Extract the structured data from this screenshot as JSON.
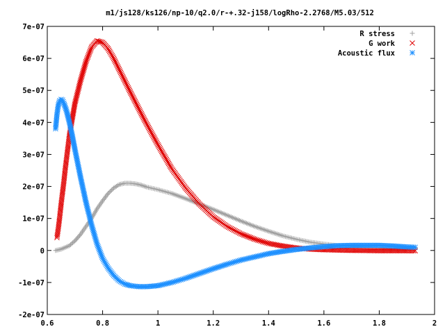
{
  "chart_data": {
    "type": "scatter",
    "title": "m1/js128/ks126/np-10/q2.0/r-+.32-j158/logRho-2.2768/M5.03/512",
    "xlabel": "",
    "ylabel": "",
    "xlim": [
      0.6,
      2.0
    ],
    "ylim": [
      -2e-07,
      7e-07
    ],
    "grid": false,
    "legend_position": "top-right",
    "x_ticks": [
      {
        "value": 0.6,
        "label": "0.6"
      },
      {
        "value": 0.8,
        "label": "0.8"
      },
      {
        "value": 1.0,
        "label": "1"
      },
      {
        "value": 1.2,
        "label": "1.2"
      },
      {
        "value": 1.4,
        "label": "1.4"
      },
      {
        "value": 1.6,
        "label": "1.6"
      },
      {
        "value": 1.8,
        "label": "1.8"
      },
      {
        "value": 2.0,
        "label": "2"
      }
    ],
    "y_ticks": [
      {
        "value": -2e-07,
        "label": "-2e-07"
      },
      {
        "value": -1e-07,
        "label": "-1e-07"
      },
      {
        "value": 0,
        "label": "0"
      },
      {
        "value": 1e-07,
        "label": "1e-07"
      },
      {
        "value": 2e-07,
        "label": "2e-07"
      },
      {
        "value": 3e-07,
        "label": "3e-07"
      },
      {
        "value": 4e-07,
        "label": "4e-07"
      },
      {
        "value": 5e-07,
        "label": "5e-07"
      },
      {
        "value": 6e-07,
        "label": "6e-07"
      },
      {
        "value": 7e-07,
        "label": "7e-07"
      }
    ],
    "series": [
      {
        "name": "R stress",
        "marker": "plus",
        "color": "#a0a0a0",
        "points": [
          [
            0.63,
            0.0
          ],
          [
            0.65,
            4e-09
          ],
          [
            0.68,
            1.5e-08
          ],
          [
            0.7,
            3e-08
          ],
          [
            0.72,
            5e-08
          ],
          [
            0.74,
            7.5e-08
          ],
          [
            0.76,
            1e-07
          ],
          [
            0.78,
            1.3e-07
          ],
          [
            0.8,
            1.55e-07
          ],
          [
            0.82,
            1.78e-07
          ],
          [
            0.84,
            1.95e-07
          ],
          [
            0.86,
            2.06e-07
          ],
          [
            0.88,
            2.1e-07
          ],
          [
            0.9,
            2.1e-07
          ],
          [
            0.92,
            2.08e-07
          ],
          [
            0.94,
            2.04e-07
          ],
          [
            0.96,
            1.98e-07
          ],
          [
            1.0,
            1.9e-07
          ],
          [
            1.05,
            1.78e-07
          ],
          [
            1.1,
            1.62e-07
          ],
          [
            1.15,
            1.45e-07
          ],
          [
            1.2,
            1.28e-07
          ],
          [
            1.25,
            1.1e-07
          ],
          [
            1.3,
            9.2e-08
          ],
          [
            1.35,
            7.5e-08
          ],
          [
            1.4,
            6e-08
          ],
          [
            1.45,
            4.6e-08
          ],
          [
            1.5,
            3.5e-08
          ],
          [
            1.55,
            2.6e-08
          ],
          [
            1.6,
            2e-08
          ],
          [
            1.65,
            1.5e-08
          ],
          [
            1.7,
            1.2e-08
          ],
          [
            1.75,
            1e-08
          ],
          [
            1.8,
            9e-09
          ],
          [
            1.85,
            8e-09
          ],
          [
            1.9,
            8e-09
          ],
          [
            1.93,
            8e-09
          ]
        ]
      },
      {
        "name": "G work",
        "marker": "cross",
        "color": "#e00000",
        "points": [
          [
            0.635,
            4e-08
          ],
          [
            0.64,
            7e-08
          ],
          [
            0.645,
            1.05e-07
          ],
          [
            0.65,
            1.45e-07
          ],
          [
            0.655,
            1.8e-07
          ],
          [
            0.66,
            2.15e-07
          ],
          [
            0.665,
            2.55e-07
          ],
          [
            0.67,
            2.9e-07
          ],
          [
            0.675,
            3.25e-07
          ],
          [
            0.68,
            3.6e-07
          ],
          [
            0.69,
            4.1e-07
          ],
          [
            0.7,
            4.6e-07
          ],
          [
            0.72,
            5.3e-07
          ],
          [
            0.74,
            5.9e-07
          ],
          [
            0.76,
            6.35e-07
          ],
          [
            0.78,
            6.55e-07
          ],
          [
            0.8,
            6.5e-07
          ],
          [
            0.82,
            6.3e-07
          ],
          [
            0.84,
            6e-07
          ],
          [
            0.86,
            5.65e-07
          ],
          [
            0.88,
            5.3e-07
          ],
          [
            0.9,
            4.95e-07
          ],
          [
            0.95,
            4.1e-07
          ],
          [
            1.0,
            3.3e-07
          ],
          [
            1.05,
            2.55e-07
          ],
          [
            1.1,
            1.95e-07
          ],
          [
            1.15,
            1.45e-07
          ],
          [
            1.2,
            1.05e-07
          ],
          [
            1.25,
            7.5e-08
          ],
          [
            1.3,
            5.2e-08
          ],
          [
            1.35,
            3.5e-08
          ],
          [
            1.4,
            2.2e-08
          ],
          [
            1.45,
            1.4e-08
          ],
          [
            1.5,
            8e-09
          ],
          [
            1.55,
            4e-09
          ],
          [
            1.6,
            2e-09
          ],
          [
            1.7,
            0.0
          ],
          [
            1.8,
            -1e-09
          ],
          [
            1.9,
            -1e-09
          ],
          [
            1.93,
            -1e-09
          ]
        ]
      },
      {
        "name": "Acoustic flux",
        "marker": "star",
        "color": "#1e90ff",
        "points": [
          [
            0.63,
            3.8e-07
          ],
          [
            0.635,
            4.25e-07
          ],
          [
            0.64,
            4.55e-07
          ],
          [
            0.645,
            4.68e-07
          ],
          [
            0.65,
            4.72e-07
          ],
          [
            0.655,
            4.7e-07
          ],
          [
            0.66,
            4.6e-07
          ],
          [
            0.67,
            4.35e-07
          ],
          [
            0.68,
            4e-07
          ],
          [
            0.69,
            3.6e-07
          ],
          [
            0.7,
            3.15e-07
          ],
          [
            0.72,
            2.3e-07
          ],
          [
            0.74,
            1.5e-07
          ],
          [
            0.76,
            8e-08
          ],
          [
            0.78,
            2e-08
          ],
          [
            0.8,
            -2.5e-08
          ],
          [
            0.82,
            -5.5e-08
          ],
          [
            0.84,
            -7.8e-08
          ],
          [
            0.86,
            -9.5e-08
          ],
          [
            0.88,
            -1.05e-07
          ],
          [
            0.9,
            -1.1e-07
          ],
          [
            0.93,
            -1.13e-07
          ],
          [
            0.96,
            -1.13e-07
          ],
          [
            1.0,
            -1.1e-07
          ],
          [
            1.05,
            -1e-07
          ],
          [
            1.1,
            -8.7e-08
          ],
          [
            1.15,
            -7.2e-08
          ],
          [
            1.2,
            -5.7e-08
          ],
          [
            1.25,
            -4.3e-08
          ],
          [
            1.3,
            -3e-08
          ],
          [
            1.35,
            -2e-08
          ],
          [
            1.4,
            -1e-08
          ],
          [
            1.45,
            -3e-09
          ],
          [
            1.5,
            3e-09
          ],
          [
            1.55,
            8e-09
          ],
          [
            1.6,
            1.2e-08
          ],
          [
            1.65,
            1.5e-08
          ],
          [
            1.7,
            1.6e-08
          ],
          [
            1.75,
            1.6e-08
          ],
          [
            1.8,
            1.6e-08
          ],
          [
            1.85,
            1.4e-08
          ],
          [
            1.9,
            1.1e-08
          ],
          [
            1.93,
            1e-08
          ]
        ]
      }
    ]
  }
}
